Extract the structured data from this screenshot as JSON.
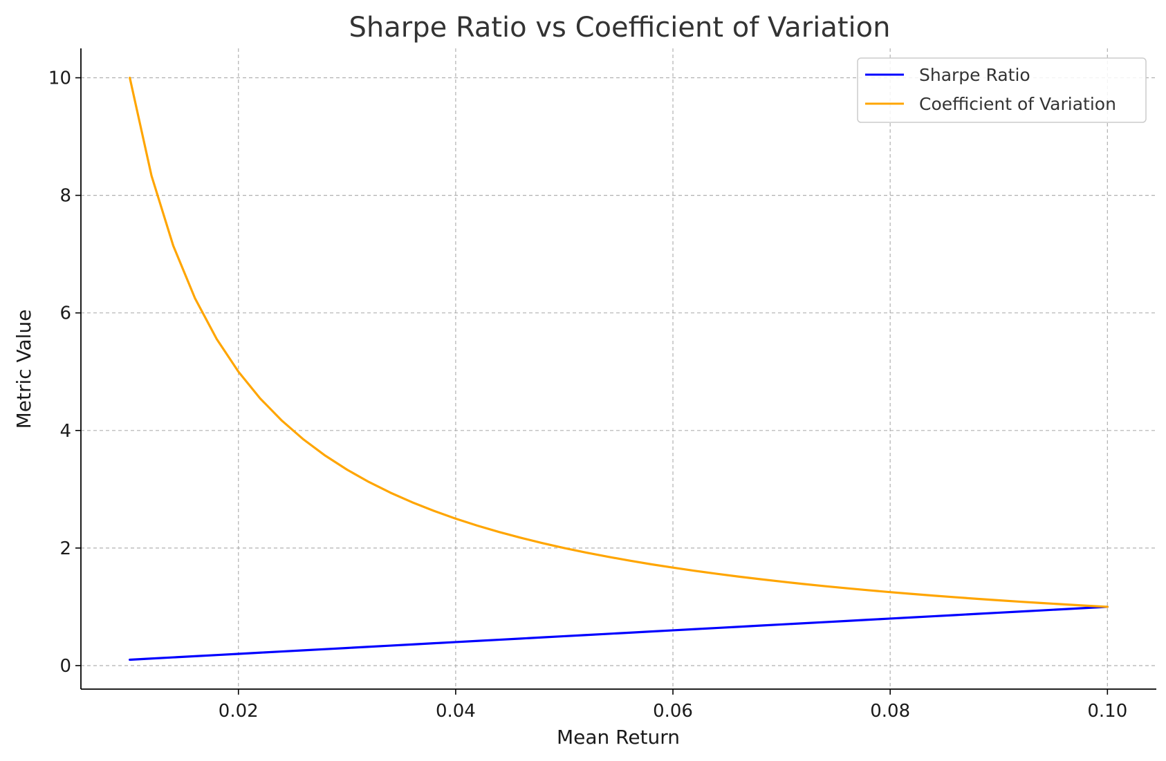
{
  "chart_data": {
    "type": "line",
    "title": "Sharpe Ratio vs Coefficient of Variation",
    "xlabel": "Mean Return",
    "ylabel": "Metric Value",
    "xlim": [
      0.0055,
      0.1045
    ],
    "ylim": [
      -0.4,
      10.5
    ],
    "xticks": [
      0.02,
      0.04,
      0.06,
      0.08,
      0.1
    ],
    "xtick_labels": [
      "0.02",
      "0.04",
      "0.06",
      "0.08",
      "0.10"
    ],
    "yticks": [
      0,
      2,
      4,
      6,
      8,
      10
    ],
    "ytick_labels": [
      "0",
      "2",
      "4",
      "6",
      "8",
      "10"
    ],
    "grid": true,
    "legend_position": "top-right",
    "x": [
      0.01,
      0.012,
      0.014,
      0.016,
      0.018,
      0.02,
      0.022,
      0.024,
      0.026,
      0.028,
      0.03,
      0.032,
      0.034,
      0.036,
      0.038,
      0.04,
      0.042,
      0.044,
      0.046,
      0.048,
      0.05,
      0.052,
      0.054,
      0.056,
      0.058,
      0.06,
      0.062,
      0.064,
      0.066,
      0.068,
      0.07,
      0.072,
      0.074,
      0.076,
      0.078,
      0.08,
      0.082,
      0.084,
      0.086,
      0.088,
      0.09,
      0.092,
      0.094,
      0.096,
      0.098,
      0.1
    ],
    "series": [
      {
        "name": "Sharpe Ratio",
        "color": "#0000ff",
        "values": [
          0.1,
          0.12,
          0.14,
          0.16,
          0.18,
          0.2,
          0.22,
          0.24,
          0.26,
          0.28,
          0.3,
          0.32,
          0.34,
          0.36,
          0.38,
          0.4,
          0.42,
          0.44,
          0.46,
          0.48,
          0.5,
          0.52,
          0.54,
          0.56,
          0.58,
          0.6,
          0.62,
          0.64,
          0.66,
          0.68,
          0.7,
          0.72,
          0.74,
          0.76,
          0.78,
          0.8,
          0.82,
          0.84,
          0.86,
          0.88,
          0.9,
          0.92,
          0.94,
          0.96,
          0.98,
          1.0
        ]
      },
      {
        "name": "Coefficient of Variation",
        "color": "#ffa500",
        "values": [
          10.0,
          8.333,
          7.143,
          6.25,
          5.556,
          5.0,
          4.545,
          4.167,
          3.846,
          3.571,
          3.333,
          3.125,
          2.941,
          2.778,
          2.632,
          2.5,
          2.381,
          2.273,
          2.174,
          2.083,
          2.0,
          1.923,
          1.852,
          1.786,
          1.724,
          1.667,
          1.613,
          1.563,
          1.515,
          1.471,
          1.429,
          1.389,
          1.351,
          1.316,
          1.282,
          1.25,
          1.22,
          1.19,
          1.163,
          1.136,
          1.111,
          1.087,
          1.064,
          1.042,
          1.02,
          1.0
        ]
      }
    ]
  }
}
